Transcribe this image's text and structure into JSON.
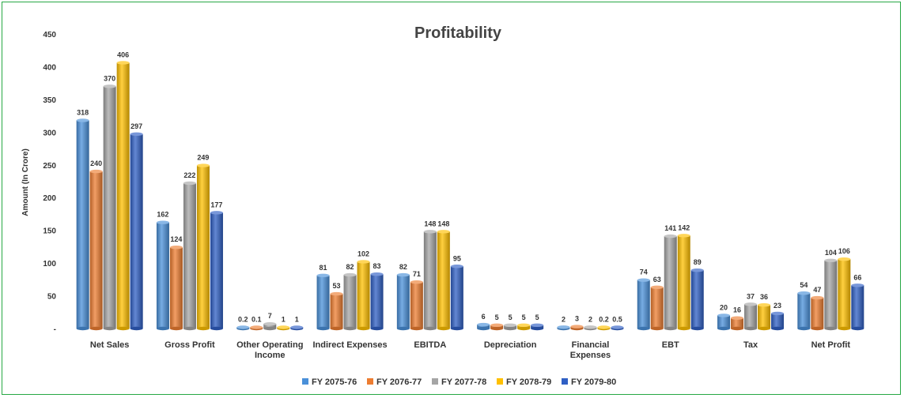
{
  "chart_data": {
    "type": "bar",
    "title": "Profitability",
    "ylabel": "Amount (In Crore)",
    "xlabel": "",
    "ylim": [
      0,
      450
    ],
    "ytick_step": 50,
    "ytick_labels": [
      "-",
      "50",
      "100",
      "150",
      "200",
      "250",
      "300",
      "350",
      "400",
      "450"
    ],
    "grid": false,
    "legend_position": "bottom",
    "categories": [
      [
        "Net Sales"
      ],
      [
        "Gross Profit"
      ],
      [
        "Other Operating",
        "Income"
      ],
      [
        "Indirect Expenses"
      ],
      [
        "EBITDA"
      ],
      [
        "Depreciation"
      ],
      [
        "Financial",
        "Expenses"
      ],
      [
        "EBT"
      ],
      [
        "Tax"
      ],
      [
        "Net Profit"
      ]
    ],
    "series": [
      {
        "name": "FY 2075-76",
        "color": "#4a90d9",
        "values": [
          318,
          162,
          0.2,
          81,
          82,
          6,
          2,
          74,
          20,
          54
        ],
        "labels": [
          "318",
          "162",
          "0.2",
          "81",
          "82",
          "6",
          "2",
          "74",
          "20",
          "54"
        ]
      },
      {
        "name": "FY 2076-77",
        "color": "#ed7d31",
        "values": [
          240,
          124,
          0.1,
          53,
          71,
          5,
          3,
          63,
          16,
          47
        ],
        "labels": [
          "240",
          "124",
          "0.1",
          "53",
          "71",
          "5",
          "3",
          "63",
          "16",
          "47"
        ]
      },
      {
        "name": "FY 2077-78",
        "color": "#a5a5a5",
        "values": [
          370,
          222,
          7,
          82,
          148,
          5,
          2,
          141,
          37,
          104
        ],
        "labels": [
          "370",
          "222",
          "7",
          "82",
          "148",
          "5",
          "2",
          "141",
          "37",
          "104"
        ]
      },
      {
        "name": "FY 2078-79",
        "color": "#ffc000",
        "values": [
          406,
          249,
          1,
          102,
          148,
          5,
          0.2,
          142,
          36,
          106
        ],
        "labels": [
          "406",
          "249",
          "1",
          "102",
          "148",
          "5",
          "0.2",
          "142",
          "36",
          "106"
        ]
      },
      {
        "name": "FY 2079-80",
        "color": "#2f5fc4",
        "values": [
          297,
          177,
          1,
          83,
          95,
          5,
          0.5,
          89,
          23,
          66
        ],
        "labels": [
          "297",
          "177",
          "1",
          "83",
          "95",
          "5",
          "0.5",
          "89",
          "23",
          "66"
        ]
      }
    ]
  }
}
